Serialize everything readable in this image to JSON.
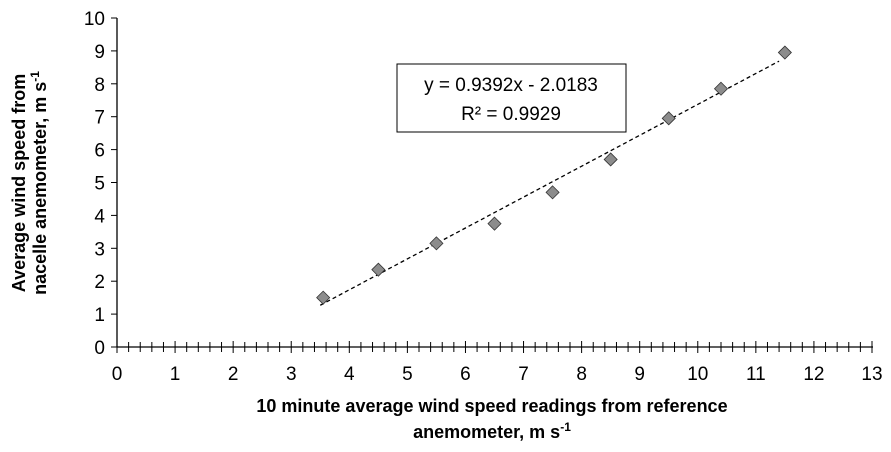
{
  "chart_data": {
    "type": "scatter",
    "xlabel": "10 minute average wind speed readings from reference anemometer, m s",
    "xlabel_line1": "10 minute average wind speed readings from reference",
    "xlabel_line2": "anemometer, m s",
    "xlabel_sup": "-1",
    "ylabel": "Average wind speed from nacelle anemometer, m s",
    "ylabel_line1": "Average wind speed from",
    "ylabel_line2": "nacelle anemometer, m s",
    "ylabel_sup": "-1",
    "xlim": [
      0,
      13
    ],
    "ylim": [
      0,
      10
    ],
    "x_ticks": [
      "0",
      "1",
      "2",
      "3",
      "4",
      "5",
      "6",
      "7",
      "8",
      "9",
      "10",
      "11",
      "12",
      "13"
    ],
    "y_ticks": [
      "0",
      "1",
      "2",
      "3",
      "4",
      "5",
      "6",
      "7",
      "8",
      "9",
      "10"
    ],
    "x_minor_step": 0.2,
    "series": [
      {
        "marker": "diamond",
        "color": "#8c8c8c",
        "points": [
          {
            "x": 3.55,
            "y": 1.5
          },
          {
            "x": 4.5,
            "y": 2.35
          },
          {
            "x": 5.5,
            "y": 3.15
          },
          {
            "x": 6.5,
            "y": 3.75
          },
          {
            "x": 7.5,
            "y": 4.7
          },
          {
            "x": 8.5,
            "y": 5.7
          },
          {
            "x": 9.5,
            "y": 6.95
          },
          {
            "x": 10.4,
            "y": 7.85
          },
          {
            "x": 11.5,
            "y": 8.95
          }
        ]
      }
    ],
    "trendline": {
      "type": "linear",
      "slope": 0.9392,
      "intercept": -2.0183,
      "x_range": [
        3.5,
        11.4
      ],
      "style": "dashed",
      "equation": "y = 0.9392x - 2.0183",
      "r_squared": "R² = 0.9929"
    },
    "grid": false,
    "legend": "none"
  }
}
